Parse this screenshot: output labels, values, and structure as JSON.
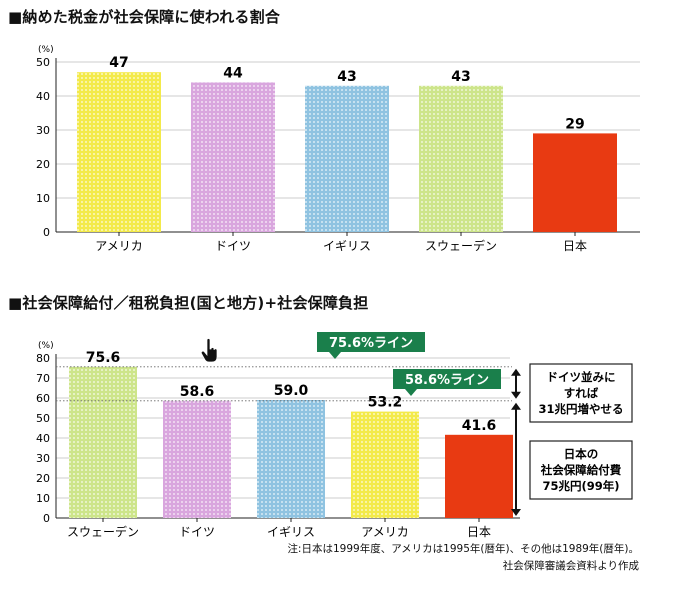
{
  "chart_data": [
    {
      "type": "bar",
      "title": "■納めた税金が社会保障に使われる割合",
      "ylabel": "(%)",
      "ylim": [
        0,
        50
      ],
      "yticks": [
        0,
        10,
        20,
        30,
        40,
        50
      ],
      "grid": true,
      "categories": [
        "アメリカ",
        "ドイツ",
        "イギリス",
        "スウェーデン",
        "日本"
      ],
      "values": [
        47,
        44,
        43,
        43,
        29
      ],
      "value_labels": [
        "47",
        "44",
        "43",
        "43",
        "29"
      ],
      "colors": [
        "#f3ea4a",
        "#d9a6de",
        "#8fc3e1",
        "#cde58a",
        "#e83a12"
      ]
    },
    {
      "type": "bar",
      "title": "■社会保障給付／租税負担(国と地方)+社会保障負担",
      "ylabel": "(%)",
      "ylim": [
        0,
        80
      ],
      "yticks": [
        0,
        10,
        20,
        30,
        40,
        50,
        60,
        70,
        80
      ],
      "grid": true,
      "categories": [
        "スウェーデン",
        "ドイツ",
        "イギリス",
        "アメリカ",
        "日本"
      ],
      "values": [
        75.6,
        58.6,
        59.0,
        53.2,
        41.6
      ],
      "value_labels": [
        "75.6",
        "58.6",
        "59.0",
        "53.2",
        "41.6"
      ],
      "colors": [
        "#cde58a",
        "#d9a6de",
        "#8fc3e1",
        "#f3ea4a",
        "#e83a12"
      ],
      "reference_lines": [
        {
          "value": 75.6,
          "label": "75.6%ライン"
        },
        {
          "value": 58.6,
          "label": "58.6%ライン"
        }
      ],
      "annotations": [
        {
          "lines": [
            "ドイツ並みに",
            "すれば",
            "31兆円増やせる"
          ],
          "from": 58.6,
          "to": 75.6
        },
        {
          "lines": [
            "日本の",
            "社会保障給付費",
            "75兆円(99年)"
          ],
          "from": 0,
          "to": 58.6
        }
      ],
      "label_color": "#1a7f4b"
    }
  ],
  "notes": {
    "footnote": "注:日本は1999年度、アメリカは1995年(暦年)、その他は1989年(暦年)。",
    "source": "社会保障審議会資料より作成"
  }
}
